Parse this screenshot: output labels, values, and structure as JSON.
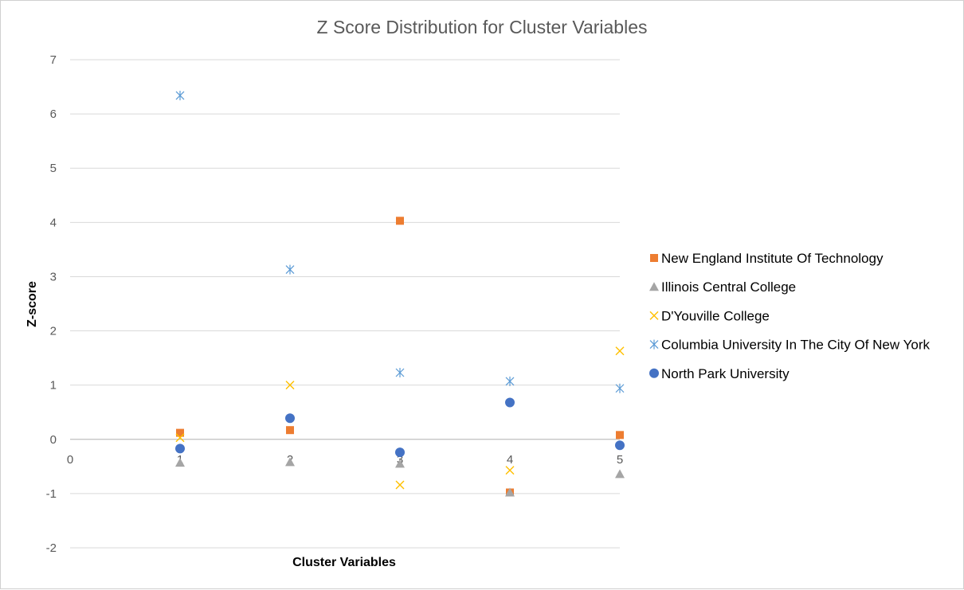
{
  "chart_data": {
    "type": "scatter",
    "title": "Z Score Distribution for Cluster Variables",
    "xlabel": "Cluster Variables",
    "ylabel": "Z-score",
    "xlim": [
      0,
      5
    ],
    "ylim": [
      -2,
      7
    ],
    "x_ticks": [
      "0",
      "1",
      "2",
      "3",
      "4",
      "5"
    ],
    "y_ticks": [
      "-2",
      "-1",
      "0",
      "1",
      "2",
      "3",
      "4",
      "5",
      "6",
      "7"
    ],
    "grid": "horizontal",
    "legend_position": "right",
    "series": [
      {
        "name": "New England Institute Of Technology",
        "marker": "square",
        "color": "#ED7D31",
        "points": [
          [
            1,
            0.12
          ],
          [
            2,
            0.17
          ],
          [
            3,
            4.03
          ],
          [
            4,
            -0.98
          ],
          [
            5,
            0.08
          ]
        ]
      },
      {
        "name": "Illinois Central College",
        "marker": "triangle",
        "color": "#A5A5A5",
        "points": [
          [
            1,
            -0.43
          ],
          [
            2,
            -0.42
          ],
          [
            3,
            -0.45
          ],
          [
            4,
            -0.98
          ],
          [
            5,
            -0.64
          ]
        ]
      },
      {
        "name": "D'Youville College",
        "marker": "x",
        "color": "#FFC000",
        "points": [
          [
            1,
            0.03
          ],
          [
            2,
            1.0
          ],
          [
            3,
            -0.84
          ],
          [
            4,
            -0.57
          ],
          [
            5,
            1.63
          ]
        ]
      },
      {
        "name": "Columbia University In The City Of New York",
        "marker": "asterisk",
        "color": "#5B9BD5",
        "points": [
          [
            1,
            6.34
          ],
          [
            2,
            3.13
          ],
          [
            3,
            1.23
          ],
          [
            4,
            1.07
          ],
          [
            5,
            0.94
          ]
        ]
      },
      {
        "name": "North Park University",
        "marker": "circle",
        "color": "#4472C4",
        "points": [
          [
            1,
            -0.17
          ],
          [
            2,
            0.39
          ],
          [
            3,
            -0.24
          ],
          [
            4,
            0.68
          ],
          [
            5,
            -0.11
          ]
        ]
      }
    ]
  }
}
